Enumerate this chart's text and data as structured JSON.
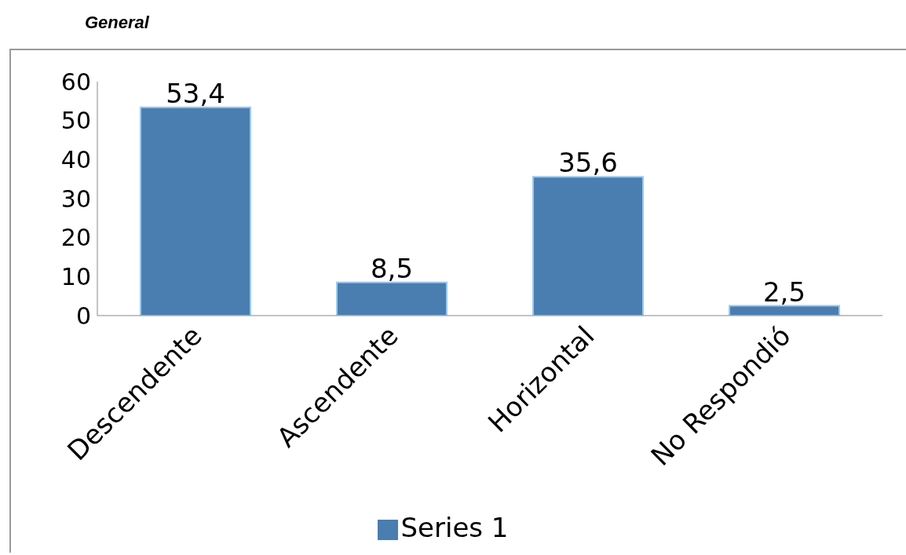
{
  "chart_data": {
    "type": "bar",
    "title": "General",
    "categories": [
      "Descendente",
      "Ascendente",
      "Horizontal",
      "No Respondió"
    ],
    "series": [
      {
        "name": "Series 1",
        "color": "#4a7eb0",
        "values": [
          53.4,
          8.5,
          35.6,
          2.5
        ],
        "value_labels": [
          "53,4",
          "8,5",
          "35,6",
          "2,5"
        ]
      }
    ],
    "ylim": [
      0,
      60
    ],
    "yticks": [
      0,
      10,
      20,
      30,
      40,
      50,
      60
    ],
    "grid": false,
    "legend": "bottom"
  }
}
